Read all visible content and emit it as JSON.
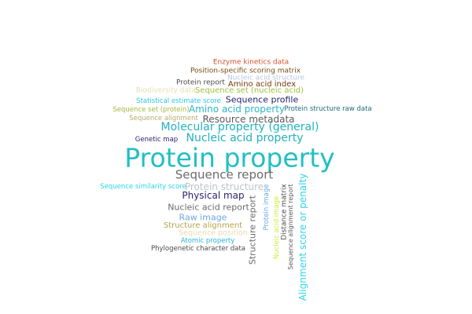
{
  "words": [
    {
      "text": "Enzyme kinetics data",
      "color": "#d6502e"
    },
    {
      "text": "Position-specific scoring matrix",
      "color": "#7a4a12"
    },
    {
      "text": "Nucleic acid structure",
      "color": "#b7c6e4"
    },
    {
      "text": "Protein report",
      "color": "#4a4a4a"
    },
    {
      "text": "Amino acid index",
      "color": "#7b3a10"
    },
    {
      "text": "Biodiversity data",
      "color": "#e6dfb0"
    },
    {
      "text": "Sequence set (nucleic acid)",
      "color": "#9bc23a"
    },
    {
      "text": "Statistical estimate score",
      "color": "#29c5e6"
    },
    {
      "text": "Sequence profile",
      "color": "#23236a"
    },
    {
      "text": "Sequence set (protein)",
      "color": "#a8b640"
    },
    {
      "text": "Amino acid property",
      "color": "#2eb6c8"
    },
    {
      "text": "Protein structure raw data",
      "color": "#1e6b7a"
    },
    {
      "text": "Sequence alignment",
      "color": "#b6ad6b"
    },
    {
      "text": "Resource metadata",
      "color": "#5a5a5a"
    },
    {
      "text": "Molecular property (general)",
      "color": "#22b2be"
    },
    {
      "text": "Nucleic acid property",
      "color": "#22b2be"
    },
    {
      "text": "Genetic map",
      "color": "#2b1f6b"
    },
    {
      "text": "Protein property",
      "color": "#22bfc2"
    },
    {
      "text": "Sequence report",
      "color": "#6a6a6a"
    },
    {
      "text": "Sequence similarity score",
      "color": "#29d6e6"
    },
    {
      "text": "Protein structure",
      "color": "#bfc4c8"
    },
    {
      "text": "Physical map",
      "color": "#2b1f6b"
    },
    {
      "text": "Nucleic acid report",
      "color": "#6a6a6a"
    },
    {
      "text": "Raw image",
      "color": "#6aa8e6"
    },
    {
      "text": "Structure alignment",
      "color": "#b6a24a"
    },
    {
      "text": "Sequence position",
      "color": "#e8dcb0"
    },
    {
      "text": "Atomic property",
      "color": "#29b6d6"
    },
    {
      "text": "Phylogenetic character data",
      "color": "#4a4a4a"
    },
    {
      "text": "Structure report",
      "color": "#6a6a6a"
    },
    {
      "text": "Protein image",
      "color": "#6aa8e6"
    },
    {
      "text": "Nucleic acid image",
      "color": "#d2e83a"
    },
    {
      "text": "Distance matrix",
      "color": "#4a4a4a"
    },
    {
      "text": "Sequence alignment report",
      "color": "#5a5a5a"
    },
    {
      "text": "Alignment score or penalty",
      "color": "#2ed6e6"
    }
  ]
}
